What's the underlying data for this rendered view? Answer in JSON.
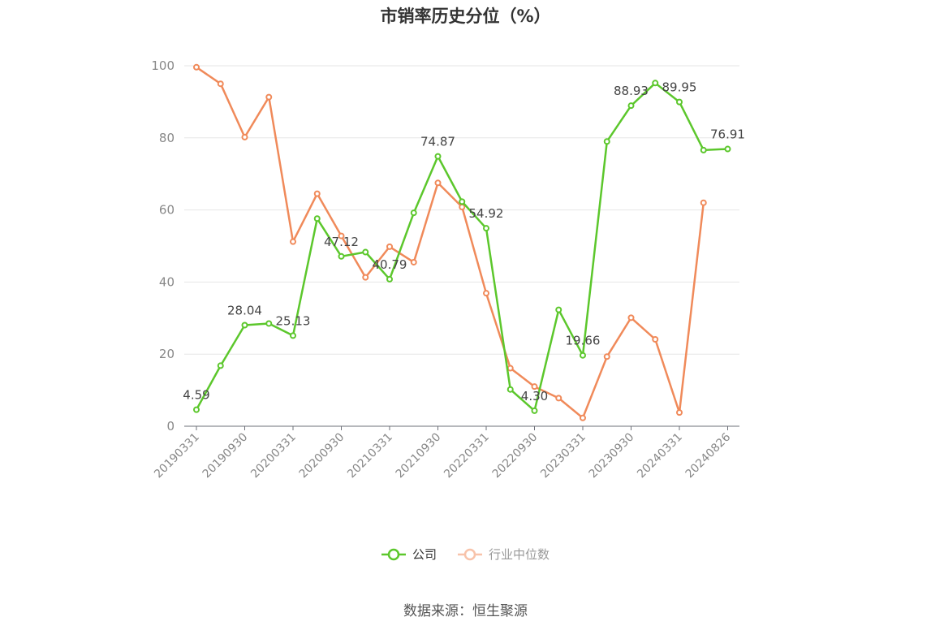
{
  "chart_data": {
    "type": "line",
    "title": "市销率历史分位（%）",
    "ylim": [
      0,
      100
    ],
    "yticks": [
      0,
      20,
      40,
      60,
      80,
      100
    ],
    "x_tick_labels": [
      "20190331",
      "20190930",
      "20200331",
      "20200930",
      "20210331",
      "20210930",
      "20220331",
      "20220930",
      "20230331",
      "20230930",
      "20240331",
      "20240826"
    ],
    "x": [
      "20190331",
      "20190630",
      "20190930",
      "20191231",
      "20200331",
      "20200630",
      "20200930",
      "20201231",
      "20210331",
      "20210630",
      "20210930",
      "20211231",
      "20220331",
      "20220630",
      "20220930",
      "20221231",
      "20230331",
      "20230630",
      "20230930",
      "20231231",
      "20240331",
      "20240630",
      "20240826"
    ],
    "grid": true,
    "legend_position": "bottom",
    "series": [
      {
        "name": "公司",
        "color": "#5cc72c",
        "values": [
          4.59,
          16.8,
          28.04,
          28.5,
          25.13,
          57.6,
          47.12,
          48.3,
          40.79,
          59.2,
          74.87,
          62.3,
          54.92,
          10.2,
          4.3,
          32.3,
          19.66,
          79.0,
          88.93,
          95.2,
          89.95,
          76.6,
          76.91
        ],
        "labels": {
          "0": "4.59",
          "2": "28.04",
          "4": "25.13",
          "6": "47.12",
          "8": "40.79",
          "10": "74.87",
          "12": "54.92",
          "14": "4.30",
          "16": "19.66",
          "18": "88.93",
          "20": "89.95",
          "22": "76.91"
        }
      },
      {
        "name": "行业中位数",
        "color": "#f08a5a",
        "values": [
          99.6,
          95.0,
          80.2,
          91.3,
          51.2,
          64.5,
          52.8,
          41.3,
          49.8,
          45.5,
          67.5,
          60.8,
          36.9,
          16.1,
          11.0,
          7.8,
          2.3,
          19.3,
          30.1,
          24.1,
          3.8,
          62.0,
          null
        ]
      }
    ]
  },
  "legend": {
    "company_label": "公司",
    "industry_label": "行业中位数"
  },
  "footer": {
    "source": "数据来源：恒生聚源"
  }
}
